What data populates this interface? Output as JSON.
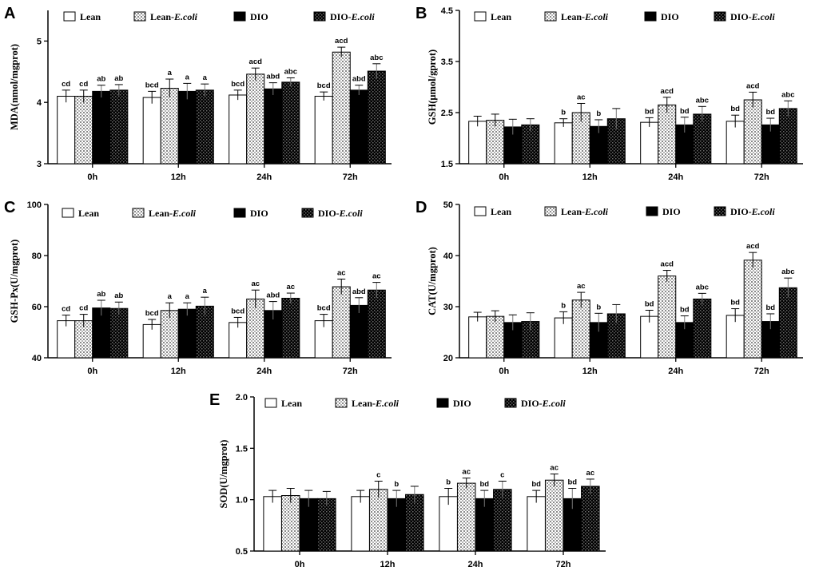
{
  "chart_data": [
    {
      "id": "A",
      "type": "bar",
      "title": "",
      "ylabel": "MDA(nmol/mgprot)",
      "xlabel": "",
      "categories": [
        "0h",
        "12h",
        "24h",
        "72h"
      ],
      "ylim": [
        3,
        5.5
      ],
      "yticks": [
        3,
        4,
        5
      ],
      "series": [
        {
          "name": "Lean",
          "values": [
            4.1,
            4.08,
            4.12,
            4.1
          ],
          "errors": [
            0.1,
            0.1,
            0.08,
            0.07
          ],
          "labels": [
            "cd",
            "bcd",
            "bcd",
            "bcd"
          ]
        },
        {
          "name": "Lean-E.coli",
          "values": [
            4.1,
            4.23,
            4.46,
            4.82
          ],
          "errors": [
            0.1,
            0.15,
            0.1,
            0.08
          ],
          "labels": [
            "cd",
            "a",
            "acd",
            "acd"
          ]
        },
        {
          "name": "DIO",
          "values": [
            4.18,
            4.18,
            4.22,
            4.2
          ],
          "errors": [
            0.1,
            0.13,
            0.1,
            0.08
          ],
          "labels": [
            "ab",
            "a",
            "abd",
            "abd"
          ]
        },
        {
          "name": "DIO-E.coli",
          "values": [
            4.2,
            4.2,
            4.33,
            4.51
          ],
          "errors": [
            0.09,
            0.1,
            0.07,
            0.12
          ],
          "labels": [
            "ab",
            "a",
            "abc",
            "abc"
          ]
        }
      ]
    },
    {
      "id": "B",
      "type": "bar",
      "title": "",
      "ylabel": "GSH(μmol/gprot)",
      "xlabel": "",
      "categories": [
        "0h",
        "12h",
        "24h",
        "72h"
      ],
      "ylim": [
        1.5,
        4.5
      ],
      "yticks": [
        1.5,
        2.5,
        3.5,
        4.5
      ],
      "series": [
        {
          "name": "Lean",
          "values": [
            2.33,
            2.3,
            2.31,
            2.33
          ],
          "errors": [
            0.1,
            0.08,
            0.09,
            0.12
          ],
          "labels": [
            "",
            "b",
            "bd",
            "bd"
          ]
        },
        {
          "name": "Lean-E.coli",
          "values": [
            2.35,
            2.5,
            2.65,
            2.75
          ],
          "errors": [
            0.12,
            0.18,
            0.15,
            0.15
          ],
          "labels": [
            "",
            "ac",
            "acd",
            "acd"
          ]
        },
        {
          "name": "DIO",
          "values": [
            2.22,
            2.23,
            2.26,
            2.26
          ],
          "errors": [
            0.15,
            0.13,
            0.15,
            0.13
          ],
          "labels": [
            "",
            "b",
            "bd",
            "bd"
          ]
        },
        {
          "name": "DIO-E.coli",
          "values": [
            2.26,
            2.38,
            2.47,
            2.58
          ],
          "errors": [
            0.12,
            0.2,
            0.15,
            0.15
          ],
          "labels": [
            "",
            "",
            "abc",
            "abc"
          ]
        }
      ]
    },
    {
      "id": "C",
      "type": "bar",
      "title": "",
      "ylabel": "GSH-Px(U/mgprot)",
      "xlabel": "",
      "categories": [
        "0h",
        "12h",
        "24h",
        "72h"
      ],
      "ylim": [
        40,
        100
      ],
      "yticks": [
        40,
        60,
        80,
        100
      ],
      "series": [
        {
          "name": "Lean",
          "values": [
            54.5,
            53,
            53.8,
            54.5
          ],
          "errors": [
            2.2,
            2,
            2,
            2.5
          ],
          "labels": [
            "cd",
            "bcd",
            "bcd",
            "bcd"
          ]
        },
        {
          "name": "Lean-E.coli",
          "values": [
            54.5,
            58.5,
            63,
            67.8
          ],
          "errors": [
            2.5,
            3,
            3.5,
            3
          ],
          "labels": [
            "cd",
            "a",
            "ac",
            "ac"
          ]
        },
        {
          "name": "DIO",
          "values": [
            59.5,
            59,
            58.5,
            60.5
          ],
          "errors": [
            3,
            2.5,
            3.5,
            3
          ],
          "labels": [
            "ab",
            "a",
            "abd",
            "abd"
          ]
        },
        {
          "name": "DIO-E.coli",
          "values": [
            59.3,
            60.2,
            63.3,
            66.5
          ],
          "errors": [
            2.5,
            3.5,
            2,
            3
          ],
          "labels": [
            "ab",
            "a",
            "ac",
            "ac"
          ]
        }
      ]
    },
    {
      "id": "D",
      "type": "bar",
      "title": "",
      "ylabel": "CAT(U/mgprot)",
      "xlabel": "",
      "categories": [
        "0h",
        "12h",
        "24h",
        "72h"
      ],
      "ylim": [
        20,
        50
      ],
      "yticks": [
        20,
        30,
        40,
        50
      ],
      "series": [
        {
          "name": "Lean",
          "values": [
            28,
            27.8,
            28.1,
            28.3
          ],
          "errors": [
            0.9,
            1.2,
            1.2,
            1.3
          ],
          "labels": [
            "",
            "b",
            "bd",
            "bd"
          ]
        },
        {
          "name": "Lean-E.coli",
          "values": [
            28.1,
            31.3,
            36,
            39.1
          ],
          "errors": [
            1.1,
            1.5,
            1.1,
            1.5
          ],
          "labels": [
            "",
            "ac",
            "acd",
            "acd"
          ]
        },
        {
          "name": "DIO",
          "values": [
            26.9,
            26.9,
            26.9,
            27.1
          ],
          "errors": [
            1.5,
            1.8,
            1.3,
            1.5
          ],
          "labels": [
            "",
            "b",
            "bd",
            "bd"
          ]
        },
        {
          "name": "DIO-E.coli",
          "values": [
            27.1,
            28.6,
            31.5,
            33.7
          ],
          "errors": [
            1.7,
            1.8,
            1.1,
            1.9
          ],
          "labels": [
            "",
            "",
            "abc",
            "abc"
          ]
        }
      ]
    },
    {
      "id": "E",
      "type": "bar",
      "title": "",
      "ylabel": "SOD(U/mgprot)",
      "xlabel": "",
      "categories": [
        "0h",
        "12h",
        "24h",
        "72h"
      ],
      "ylim": [
        0.5,
        2.0
      ],
      "yticks": [
        0.5,
        1.0,
        1.5,
        2.0
      ],
      "series": [
        {
          "name": "Lean",
          "values": [
            1.03,
            1.03,
            1.03,
            1.03
          ],
          "errors": [
            0.06,
            0.06,
            0.08,
            0.06
          ],
          "labels": [
            "",
            "",
            "b",
            "bd"
          ]
        },
        {
          "name": "Lean-E.coli",
          "values": [
            1.04,
            1.1,
            1.16,
            1.19
          ],
          "errors": [
            0.07,
            0.08,
            0.05,
            0.06
          ],
          "labels": [
            "",
            "c",
            "ac",
            "ac"
          ]
        },
        {
          "name": "DIO",
          "values": [
            1.01,
            1.01,
            1.01,
            1.01
          ],
          "errors": [
            0.08,
            0.08,
            0.08,
            0.1
          ],
          "labels": [
            "",
            "b",
            "bd",
            "bd"
          ]
        },
        {
          "name": "DIO-E.coli",
          "values": [
            1.01,
            1.05,
            1.1,
            1.13
          ],
          "errors": [
            0.07,
            0.08,
            0.08,
            0.07
          ],
          "labels": [
            "",
            "",
            "c",
            "ac"
          ]
        }
      ]
    }
  ],
  "legend": {
    "items": [
      {
        "name": "Lean",
        "plain": "Lean",
        "italic": ""
      },
      {
        "name": "Lean-E.coli",
        "plain": "Lean-",
        "italic": "E.coli"
      },
      {
        "name": "DIO",
        "plain": "DIO",
        "italic": ""
      },
      {
        "name": "DIO-E.coli",
        "plain": "DIO-",
        "italic": "E.coli"
      }
    ]
  },
  "colors": {
    "lean": "#ffffff",
    "lean_ecoli": "#dcdcdc",
    "dio": "#000000",
    "dio_ecoli": "#2b2b2b",
    "axis": "#000000"
  }
}
